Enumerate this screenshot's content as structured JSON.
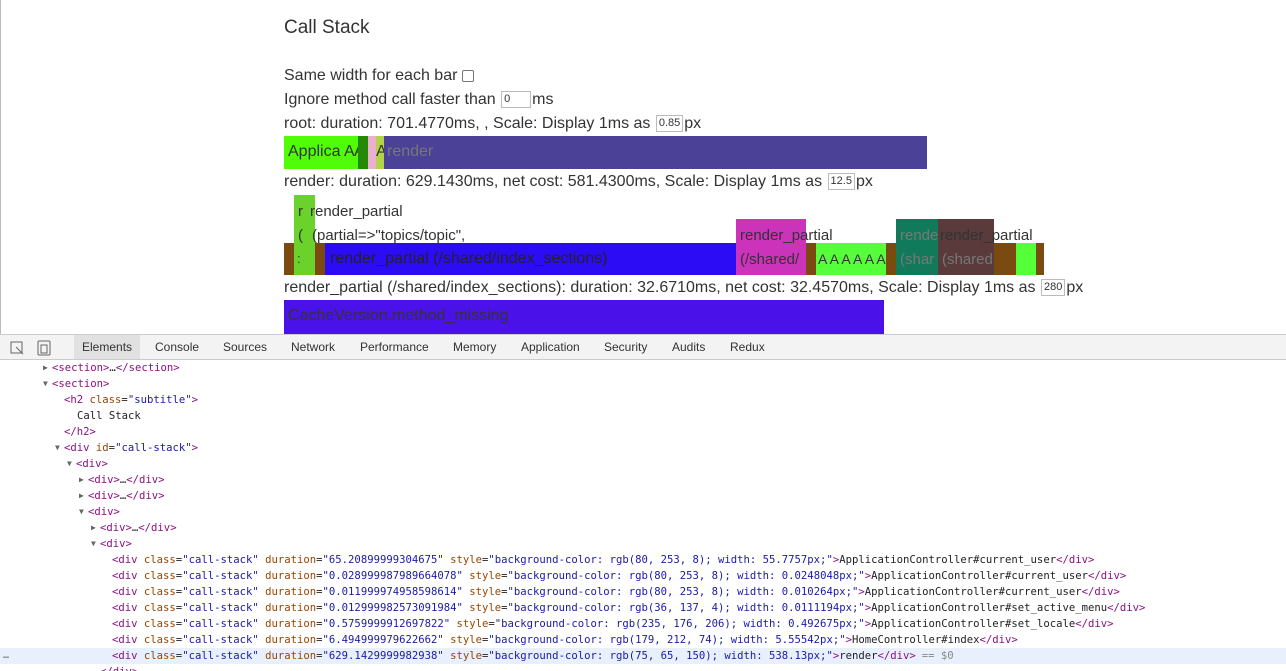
{
  "page": {
    "heading": "Call Stack",
    "same_width_label": "Same width for each bar",
    "ignore_label": "Ignore method call faster than",
    "ignore_value": "0",
    "ignore_unit": "ms",
    "root_info": "root: duration: 701.4770ms, , Scale: Display 1ms as",
    "root_scale": "0.85",
    "root_unit": "px",
    "root_bars": [
      "Applica",
      "A",
      "A",
      "A",
      "render"
    ],
    "render_info": "render: duration: 629.1430ms, net cost: 581.4300ms, Scale: Display 1ms as",
    "render_scale": "12.5",
    "render_unit": "px",
    "render_top_labels": [
      "render_partial",
      "(partial=>\"topics/topic\","
    ],
    "render_bars": [
      "r",
      "(",
      ":",
      "render_partial (/shared/index_sections)",
      "render_partial",
      "(/shared/",
      "A A A A A A",
      "render",
      "(shar",
      "render_partial",
      "(shared"
    ],
    "partial_info": "render_partial (/shared/index_sections): duration: 32.6710ms, net cost: 32.4570ms, Scale: Display 1ms as",
    "partial_scale": "280",
    "partial_unit": "px",
    "partial_bar": "CacheVersion.method_missing"
  },
  "devtools": {
    "tabs": [
      "Elements",
      "Console",
      "Sources",
      "Network",
      "Performance",
      "Memory",
      "Application",
      "Security",
      "Audits",
      "Redux"
    ],
    "lines": [
      "<section>…</section>",
      "<section>",
      "<h2 class=\"subtitle\">",
      "Call Stack",
      "</h2>",
      "<div id=\"call-stack\">",
      "<div>",
      "<div>…</div>",
      "<div>…</div>",
      "<div>",
      "<div>…</div>",
      "<div>",
      "<div class=\"call-stack\" duration=\"65.20899999304675\" style=\"background-color: rgb(80, 253, 8); width: 55.7757px;\">ApplicationController#current_user</div>",
      "<div class=\"call-stack\" duration=\"0.028999987989664078\" style=\"background-color: rgb(80, 253, 8); width: 0.0248048px;\">ApplicationController#current_user</div>",
      "<div class=\"call-stack\" duration=\"0.011999974958598614\" style=\"background-color: rgb(80, 253, 8); width: 0.010264px;\">ApplicationController#current_user</div>",
      "<div class=\"call-stack\" duration=\"0.012999982573091984\" style=\"background-color: rgb(36, 137, 4); width: 0.0111194px;\">ApplicationController#set_active_menu</div>",
      "<div class=\"call-stack\" duration=\"0.5759999912697822\" style=\"background-color: rgb(235, 176, 206); width: 0.492675px;\">ApplicationController#set_locale</div>",
      "<div class=\"call-stack\" duration=\"6.494999979622662\" style=\"background-color: rgb(179, 212, 74); width: 5.55542px;\">HomeController#index</div>",
      "<div class=\"call-stack\" duration=\"629.1429999982938\" style=\"background-color: rgb(75, 65, 150); width: 538.13px;\">render</div>",
      "</div>"
    ],
    "selected_suffix": "== $0"
  }
}
